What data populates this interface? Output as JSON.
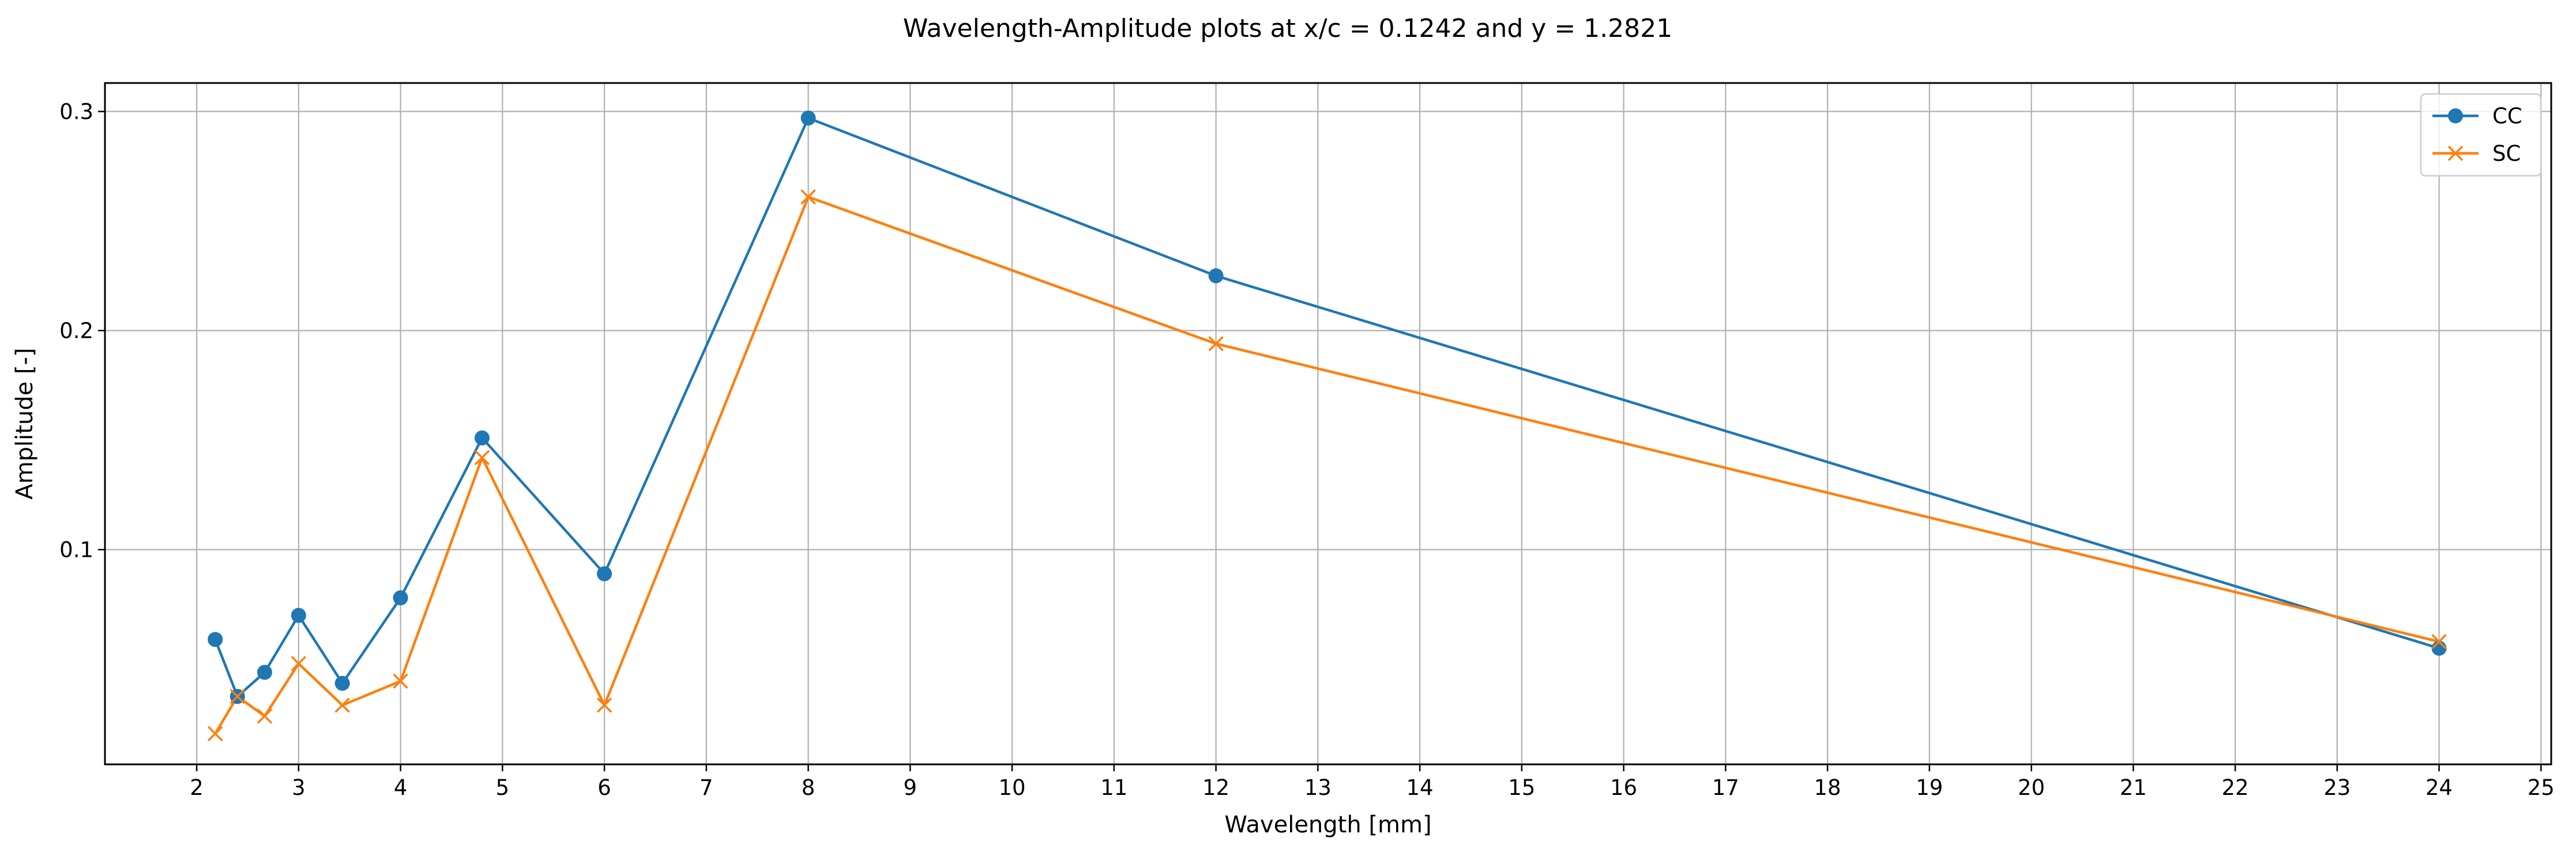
{
  "chart_data": {
    "type": "line",
    "title": "Wavelength-Amplitude plots at x/c = 0.1242 and y = 1.2821",
    "xlabel": "Wavelength [mm]",
    "ylabel": "Amplitude [-]",
    "xlim": [
      1.1,
      25.1
    ],
    "ylim": [
      0.002,
      0.313
    ],
    "xticks": [
      2,
      3,
      4,
      5,
      6,
      7,
      8,
      9,
      10,
      11,
      12,
      13,
      14,
      15,
      16,
      17,
      18,
      19,
      20,
      21,
      22,
      23,
      24,
      25
    ],
    "xtick_labels": [
      "2",
      "3",
      "4",
      "5",
      "6",
      "7",
      "8",
      "9",
      "10",
      "11",
      "12",
      "13",
      "14",
      "15",
      "16",
      "17",
      "18",
      "19",
      "20",
      "21",
      "22",
      "23",
      "24",
      "25"
    ],
    "yticks": [
      0.1,
      0.2,
      0.3
    ],
    "ytick_labels": [
      "0.1",
      "0.2",
      "0.3"
    ],
    "grid": true,
    "legend_position": "top-right",
    "series": [
      {
        "name": "CC",
        "color": "#1f77b4",
        "marker": "circle",
        "x": [
          2.182,
          2.4,
          2.667,
          3.0,
          3.429,
          4.0,
          4.8,
          6.0,
          8.0,
          12.0,
          24.0
        ],
        "y": [
          0.059,
          0.033,
          0.044,
          0.07,
          0.039,
          0.078,
          0.151,
          0.089,
          0.297,
          0.225,
          0.055
        ]
      },
      {
        "name": "SC",
        "color": "#ff7f0e",
        "marker": "x",
        "x": [
          2.182,
          2.4,
          2.667,
          3.0,
          3.429,
          4.0,
          4.8,
          6.0,
          8.0,
          12.0,
          24.0
        ],
        "y": [
          0.016,
          0.033,
          0.024,
          0.048,
          0.029,
          0.04,
          0.142,
          0.029,
          0.261,
          0.194,
          0.058
        ]
      }
    ]
  }
}
